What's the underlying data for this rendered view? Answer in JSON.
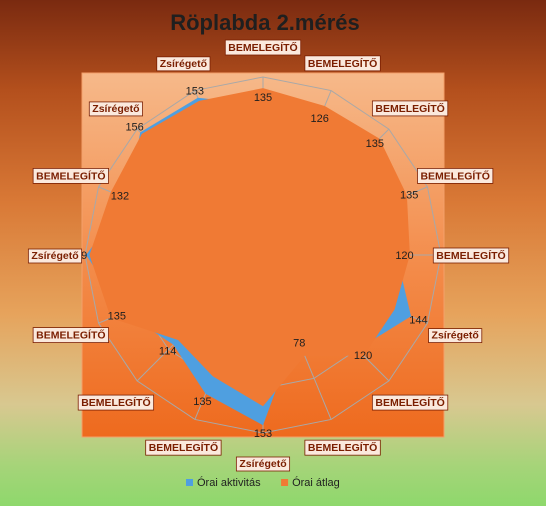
{
  "chart_data": {
    "type": "radar",
    "title": "Röplabda 2.mérés",
    "categories": [
      "BEMELEGÍTŐ",
      "BEMELEGÍTŐ",
      "BEMELEGÍTŐ",
      "BEMELEGÍTŐ",
      "BEMELEGÍTŐ",
      "Zsírégető",
      "BEMELEGÍTŐ",
      "BEMELEGÍTŐ",
      "Zsírégető",
      "BEMELEGÍTŐ",
      "BEMELEGÍTŐ",
      "BEMELEGÍTŐ",
      "Zsírégető",
      "BEMELEGÍTŐ",
      "Zsírégető",
      "Zsírégető"
    ],
    "value_labels": [
      "135",
      "126",
      "135",
      "135",
      "120",
      "144",
      "120",
      "78",
      "153",
      "135",
      "114",
      "135",
      "159",
      "132",
      "156",
      "153"
    ],
    "series": [
      {
        "name": "Órai aktivitás",
        "color": "#4f9fe0",
        "values": [
          135,
          126,
          135,
          135,
          120,
          144,
          120,
          78,
          153,
          135,
          114,
          135,
          159,
          132,
          156,
          153
        ]
      },
      {
        "name": "Órai átlag",
        "color": "#f07a34",
        "values": [
          150,
          145,
          148,
          140,
          132,
          128,
          128,
          98,
          136,
          118,
          108,
          148,
          156,
          148,
          154,
          150
        ]
      }
    ],
    "rmax": 160,
    "grid_rings": 4,
    "legend": "bottom"
  }
}
